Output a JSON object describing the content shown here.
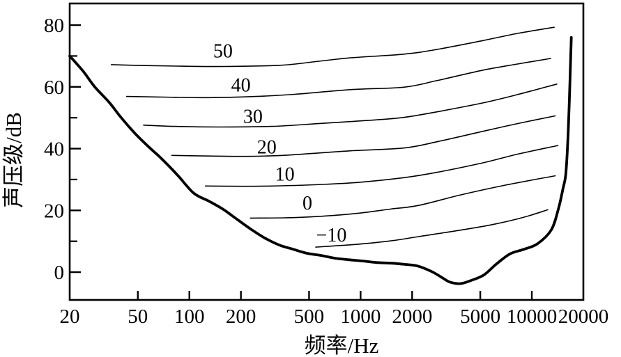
{
  "figure": {
    "background_color": "#ffffff",
    "line_color": "#000000"
  },
  "chart_data": {
    "type": "line",
    "title": "",
    "xlabel": "频率/Hz",
    "ylabel": "声压级/dB",
    "x_scale": "log",
    "xlim": [
      20,
      20000
    ],
    "ylim": [
      -9,
      87
    ],
    "grid": false,
    "legend": "none (curves labeled inline)",
    "x_ticks": [
      {
        "v": 20,
        "label": "20"
      },
      {
        "v": 50,
        "label": "50"
      },
      {
        "v": 100,
        "label": "100"
      },
      {
        "v": 200,
        "label": "200"
      },
      {
        "v": 500,
        "label": "500"
      },
      {
        "v": 1000,
        "label": "1000"
      },
      {
        "v": 2000,
        "label": "2000"
      },
      {
        "v": 5000,
        "label": "5000"
      },
      {
        "v": 10000,
        "label": "10000"
      },
      {
        "v": 20000,
        "label": "20000"
      }
    ],
    "y_ticks": [
      {
        "v": 0,
        "label": "0"
      },
      {
        "v": 20,
        "label": "20"
      },
      {
        "v": 40,
        "label": "40"
      },
      {
        "v": 60,
        "label": "60"
      },
      {
        "v": 80,
        "label": "80"
      }
    ],
    "y_minor_ticks": [
      10,
      30,
      50,
      70
    ],
    "series": [
      {
        "name": "hearing-threshold",
        "label": "",
        "width": 3.8,
        "points": [
          [
            20,
            70
          ],
          [
            24,
            65
          ],
          [
            28,
            60
          ],
          [
            34,
            55
          ],
          [
            40,
            50
          ],
          [
            48,
            45
          ],
          [
            58,
            40.5
          ],
          [
            68,
            37
          ],
          [
            85,
            31.5
          ],
          [
            106,
            25.6
          ],
          [
            130,
            23
          ],
          [
            157,
            20.4
          ],
          [
            190,
            17.1
          ],
          [
            229,
            13.9
          ],
          [
            277,
            11
          ],
          [
            334,
            8.8
          ],
          [
            404,
            7.4
          ],
          [
            487,
            6.1
          ],
          [
            589,
            5.4
          ],
          [
            711,
            4.5
          ],
          [
            859,
            4
          ],
          [
            1037,
            3.6
          ],
          [
            1253,
            3.1
          ],
          [
            1513,
            2.9
          ],
          [
            1827,
            2.5
          ],
          [
            2150,
            2
          ],
          [
            2600,
            0.2
          ],
          [
            3000,
            -1.8
          ],
          [
            3320,
            -3.2
          ],
          [
            3830,
            -3.7
          ],
          [
            4420,
            -2.7
          ],
          [
            5250,
            -0.9
          ],
          [
            6170,
            2.5
          ],
          [
            7450,
            5.9
          ],
          [
            9000,
            7.4
          ],
          [
            10800,
            9.2
          ],
          [
            13000,
            13.7
          ],
          [
            14300,
            20.5
          ],
          [
            15200,
            27
          ],
          [
            15800,
            32
          ],
          [
            16300,
            45
          ],
          [
            16700,
            62
          ],
          [
            17000,
            76
          ]
        ]
      },
      {
        "name": "contour-50",
        "label": "50",
        "label_at": [
          157,
          71.7
        ],
        "width": 1.6,
        "points": [
          [
            35,
            67.2
          ],
          [
            55,
            66.9
          ],
          [
            90,
            66.7
          ],
          [
            160,
            66.6
          ],
          [
            340,
            67
          ],
          [
            570,
            68.3
          ],
          [
            875,
            69.4
          ],
          [
            1790,
            70.6
          ],
          [
            2780,
            72.1
          ],
          [
            5180,
            75
          ],
          [
            8250,
            77.3
          ],
          [
            13500,
            79.3
          ]
        ]
      },
      {
        "name": "contour-40",
        "label": "40",
        "label_at": [
          200,
          60.7
        ],
        "width": 1.6,
        "points": [
          [
            43,
            56.9
          ],
          [
            70,
            56.7
          ],
          [
            130,
            56.5
          ],
          [
            245,
            56.9
          ],
          [
            412,
            57.6
          ],
          [
            875,
            59.1
          ],
          [
            1790,
            59.9
          ],
          [
            2780,
            62
          ],
          [
            5180,
            65.4
          ],
          [
            8250,
            67.4
          ],
          [
            12900,
            69.2
          ]
        ]
      },
      {
        "name": "contour-30",
        "label": "30",
        "label_at": [
          235,
          50.6
        ],
        "width": 1.6,
        "points": [
          [
            54,
            47.6
          ],
          [
            82,
            47.2
          ],
          [
            150,
            47
          ],
          [
            304,
            47.2
          ],
          [
            567,
            48.1
          ],
          [
            1160,
            49.2
          ],
          [
            1790,
            50.1
          ],
          [
            2780,
            51.9
          ],
          [
            5180,
            54.8
          ],
          [
            8250,
            57.5
          ],
          [
            14000,
            60.9
          ]
        ]
      },
      {
        "name": "contour-20",
        "label": "20",
        "label_at": [
          283,
          40.7
        ],
        "width": 1.6,
        "points": [
          [
            79,
            37.8
          ],
          [
            130,
            37.6
          ],
          [
            220,
            37.5
          ],
          [
            374,
            37.9
          ],
          [
            875,
            39.3
          ],
          [
            1790,
            40.2
          ],
          [
            2780,
            42.2
          ],
          [
            5180,
            45.6
          ],
          [
            8250,
            48.1
          ],
          [
            13700,
            50.6
          ]
        ]
      },
      {
        "name": "contour-10",
        "label": "10",
        "label_at": [
          361,
          31.9
        ],
        "width": 1.6,
        "points": [
          [
            124,
            27.9
          ],
          [
            200,
            27.8
          ],
          [
            304,
            27.9
          ],
          [
            535,
            28.3
          ],
          [
            933,
            29
          ],
          [
            1790,
            30.6
          ],
          [
            2780,
            32.3
          ],
          [
            5180,
            35.4
          ],
          [
            8250,
            38.2
          ],
          [
            14200,
            41
          ]
        ]
      },
      {
        "name": "contour-0",
        "label": "0",
        "label_at": [
          489,
          22.5
        ],
        "width": 1.6,
        "points": [
          [
            227,
            17.5
          ],
          [
            360,
            17.6
          ],
          [
            518,
            17.9
          ],
          [
            905,
            18.9
          ],
          [
            1490,
            20.4
          ],
          [
            2180,
            21.6
          ],
          [
            3830,
            25
          ],
          [
            7170,
            28.3
          ],
          [
            13700,
            31.2
          ]
        ]
      },
      {
        "name": "contour-minus-10",
        "label": "−10",
        "label_at": [
          675,
          12.1
        ],
        "width": 1.6,
        "points": [
          [
            547,
            8.1
          ],
          [
            900,
            8.9
          ],
          [
            1490,
            10.1
          ],
          [
            2180,
            11.5
          ],
          [
            3830,
            13.6
          ],
          [
            6000,
            15.5
          ],
          [
            9000,
            17.8
          ],
          [
            12400,
            20.2
          ]
        ]
      }
    ]
  }
}
